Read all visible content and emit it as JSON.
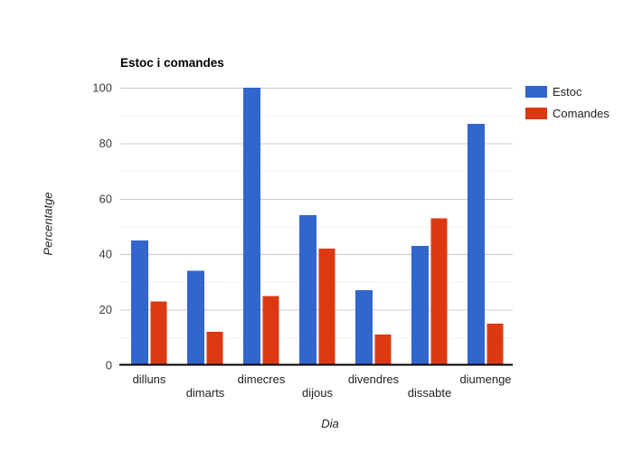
{
  "chart_data": {
    "type": "bar",
    "title": "Estoc i comandes",
    "xlabel": "Dia",
    "ylabel": "Percentatge",
    "categories": [
      "dilluns",
      "dimarts",
      "dimecres",
      "dijous",
      "divendres",
      "dissabte",
      "diumenge"
    ],
    "series": [
      {
        "name": "Estoc",
        "color": "#3366cc",
        "values": [
          45,
          34,
          100,
          54,
          27,
          43,
          87
        ]
      },
      {
        "name": "Comandes",
        "color": "#dc3912",
        "values": [
          23,
          12,
          25,
          42,
          11,
          53,
          15
        ]
      }
    ],
    "ylim": [
      0,
      100
    ],
    "yticks": [
      0,
      20,
      40,
      60,
      80,
      100
    ],
    "grid": true,
    "legend_position": "right",
    "colors": {
      "major_grid": "#c9c9c9",
      "minor_grid": "#dedede",
      "axis_line": "#000000",
      "tick_label": "#3d3d3d",
      "category_label": "#222222"
    }
  }
}
